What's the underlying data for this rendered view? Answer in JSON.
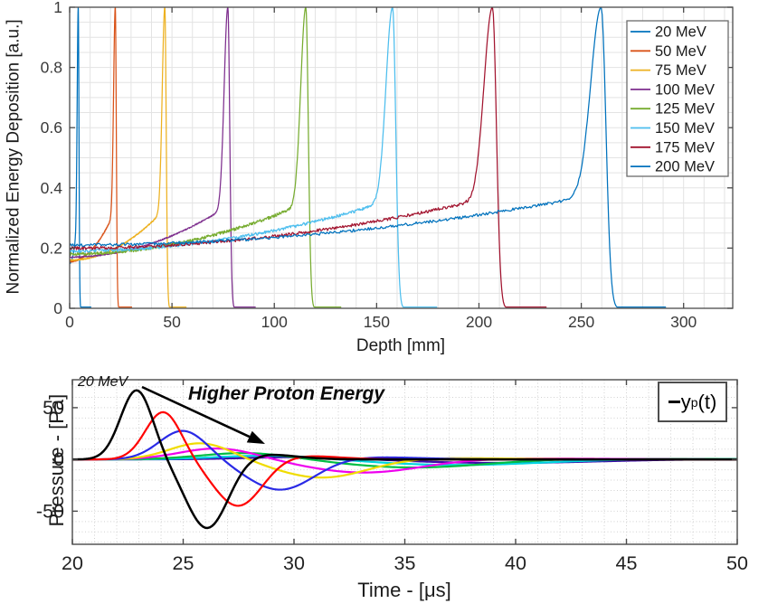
{
  "page": {
    "background_color": "#ffffff"
  },
  "chart_data": [
    {
      "type": "line",
      "id": "bragg-depth-dose",
      "description": "Normalized Bragg curves (energy deposition vs depth) for proton beams",
      "xlabel": "Depth [mm]",
      "ylabel": "Normalized Energy Deposition [a.u.]",
      "xlim": [
        0,
        324
      ],
      "ylim": [
        0,
        1
      ],
      "xticks": [
        0,
        50,
        100,
        150,
        200,
        250,
        300
      ],
      "ytick_labels": [
        "0",
        "0.2",
        "0.4",
        "0.6",
        "0.8",
        "1"
      ],
      "yticks": [
        0,
        0.2,
        0.4,
        0.6,
        0.8,
        1
      ],
      "grid": "fine light-gray grid, 10 mm x-step, 0.05 y-step",
      "legend_position": "top-right",
      "axis_color": "#4a4a4a",
      "series": [
        {
          "name": "20 MeV",
          "color": "#0072BD",
          "bragg_peak_depth_mm": 4.2,
          "peak_value": 1.0,
          "entrance_value": 0.15
        },
        {
          "name": "50 MeV",
          "color": "#D95319",
          "bragg_peak_depth_mm": 22.3,
          "peak_value": 1.0,
          "entrance_value": 0.155
        },
        {
          "name": "75 MeV",
          "color": "#EDB120",
          "bragg_peak_depth_mm": 46.5,
          "peak_value": 1.0,
          "entrance_value": 0.16
        },
        {
          "name": "100 MeV",
          "color": "#7E2F8E",
          "bragg_peak_depth_mm": 77.3,
          "peak_value": 1.0,
          "entrance_value": 0.17
        },
        {
          "name": "125 MeV",
          "color": "#77AC30",
          "bragg_peak_depth_mm": 115.4,
          "peak_value": 1.0,
          "entrance_value": 0.18
        },
        {
          "name": "150 MeV",
          "color": "#4DBEEE",
          "bragg_peak_depth_mm": 157.8,
          "peak_value": 1.0,
          "entrance_value": 0.19
        },
        {
          "name": "175 MeV",
          "color": "#A2142F",
          "bragg_peak_depth_mm": 206.6,
          "peak_value": 1.0,
          "entrance_value": 0.2
        },
        {
          "name": "200 MeV",
          "color": "#0072BD",
          "bragg_peak_depth_mm": 259.7,
          "peak_value": 1.0,
          "entrance_value": 0.21
        }
      ]
    },
    {
      "type": "line",
      "id": "protoacoustic-pressure",
      "description": "Acoustic pressure pulses y_p(t); amplitude decreases and pulse arrives later with higher proton energy",
      "xlabel": "Time - [μs]",
      "ylabel": "Pressure - [Pa]",
      "xlim": [
        20,
        50
      ],
      "ylim": [
        -82,
        77
      ],
      "xticks": [
        20,
        25,
        30,
        35,
        40,
        45,
        50
      ],
      "yticks": [
        -50,
        0,
        50
      ],
      "grid": "dotted light-gray grid, 1 μs x-step, 10 Pa y-step",
      "annotations": {
        "peak_label": "20 MeV",
        "arrow_label": "Higher Proton Energy"
      },
      "legend": {
        "main": "y",
        "sub": "p",
        "suffix": "(t)"
      },
      "series": [
        {
          "name": "20 MeV",
          "color": "#000000",
          "peak_pa": 67,
          "peak_time_us": 22.9,
          "trough_pa": -68,
          "trough_time_us": 26.1
        },
        {
          "name": "50 MeV",
          "color": "#FF0000",
          "peak_pa": 46,
          "peak_time_us": 24.1,
          "trough_pa": -46,
          "trough_time_us": 27.5
        },
        {
          "name": "75 MeV",
          "color": "#2A2AE6",
          "peak_pa": 28,
          "peak_time_us": 25.0,
          "trough_pa": -30,
          "trough_time_us": 29.4
        },
        {
          "name": "100 MeV",
          "color": "#F0DC00",
          "peak_pa": 16,
          "peak_time_us": 25.8,
          "trough_pa": -18,
          "trough_time_us": 31.3
        },
        {
          "name": "125 MeV",
          "color": "#EE00EE",
          "peak_pa": 11,
          "peak_time_us": 26.6,
          "trough_pa": -13,
          "trough_time_us": 33.2
        },
        {
          "name": "150 MeV",
          "color": "#00BE44",
          "peak_pa": 6.5,
          "peak_time_us": 27.9,
          "trough_pa": -8,
          "trough_time_us": 35.5
        },
        {
          "name": "175 MeV",
          "color": "#00D5E0",
          "peak_pa": 4,
          "peak_time_us": 29.0,
          "trough_pa": -5.5,
          "trough_time_us": 37.5
        },
        {
          "name": "200 MeV",
          "color": "#3A0BA8",
          "peak_pa": 2.5,
          "peak_time_us": 30.5,
          "trough_pa": -3.5,
          "trough_time_us": 39.5
        }
      ]
    }
  ]
}
